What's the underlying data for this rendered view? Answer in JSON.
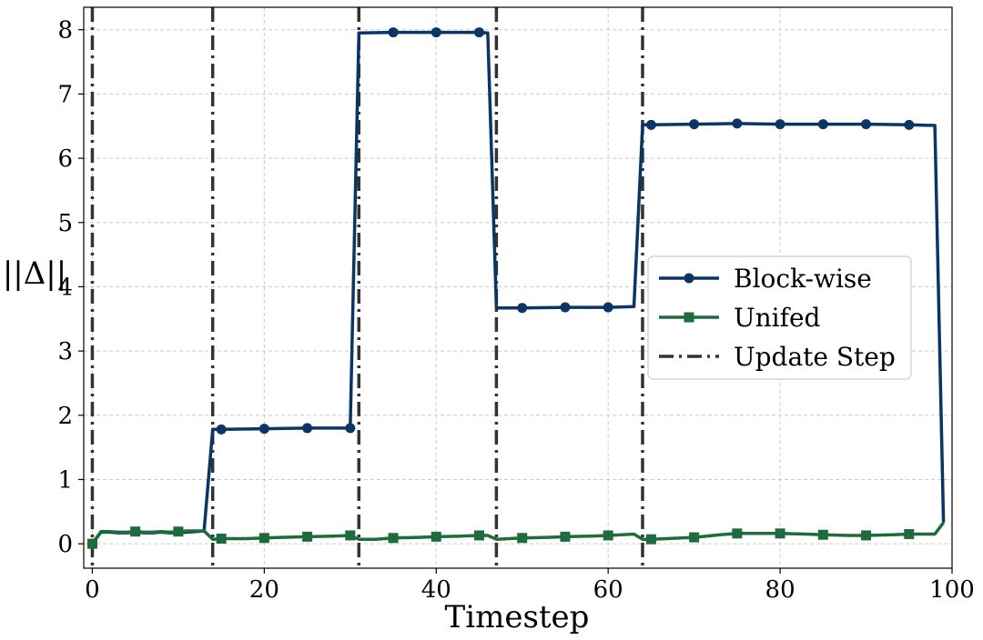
{
  "chart_data": {
    "type": "line",
    "xlabel": "Timestep",
    "ylabel": "||Δ||",
    "xlim": [
      -1,
      100
    ],
    "ylim": [
      -0.38,
      8.35
    ],
    "xticks": [
      0,
      20,
      40,
      60,
      80,
      100
    ],
    "yticks": [
      0,
      1,
      2,
      3,
      4,
      5,
      6,
      7,
      8
    ],
    "grid": true,
    "legend_position": "center-right",
    "update_steps": [
      0,
      14,
      31,
      47,
      64
    ],
    "series": [
      {
        "name": "Block-wise",
        "color": "#0b3565",
        "marker": "circle",
        "points": [
          [
            0,
            0
          ],
          [
            1,
            0.18
          ],
          [
            2,
            0.18
          ],
          [
            3,
            0.17
          ],
          [
            4,
            0.17
          ],
          [
            5,
            0.18
          ],
          [
            6,
            0.17
          ],
          [
            7,
            0.17
          ],
          [
            8,
            0.18
          ],
          [
            9,
            0.17
          ],
          [
            10,
            0.17
          ],
          [
            11,
            0.18
          ],
          [
            12,
            0.19
          ],
          [
            13,
            0.2
          ],
          [
            14,
            1.78
          ],
          [
            15,
            1.78
          ],
          [
            20,
            1.79
          ],
          [
            25,
            1.8
          ],
          [
            30,
            1.8
          ],
          [
            31,
            7.95
          ],
          [
            35,
            7.96
          ],
          [
            40,
            7.96
          ],
          [
            45,
            7.96
          ],
          [
            46,
            7.95
          ],
          [
            47,
            3.67
          ],
          [
            50,
            3.67
          ],
          [
            55,
            3.68
          ],
          [
            60,
            3.68
          ],
          [
            63,
            3.69
          ],
          [
            64,
            6.52
          ],
          [
            65,
            6.52
          ],
          [
            70,
            6.53
          ],
          [
            75,
            6.54
          ],
          [
            80,
            6.53
          ],
          [
            85,
            6.53
          ],
          [
            90,
            6.53
          ],
          [
            95,
            6.52
          ],
          [
            98,
            6.51
          ],
          [
            99,
            0.33
          ]
        ],
        "marker_x": [
          0,
          15,
          20,
          25,
          30,
          35,
          40,
          45,
          50,
          55,
          60,
          65,
          70,
          75,
          80,
          85,
          90,
          95
        ]
      },
      {
        "name": "Unifed",
        "color": "#1e6b3e",
        "marker": "square",
        "points": [
          [
            0,
            0
          ],
          [
            1,
            0.19
          ],
          [
            2,
            0.19
          ],
          [
            3,
            0.18
          ],
          [
            4,
            0.18
          ],
          [
            5,
            0.19
          ],
          [
            6,
            0.18
          ],
          [
            7,
            0.18
          ],
          [
            8,
            0.19
          ],
          [
            9,
            0.18
          ],
          [
            10,
            0.19
          ],
          [
            11,
            0.2
          ],
          [
            12,
            0.2
          ],
          [
            13,
            0.2
          ],
          [
            14,
            0.07
          ],
          [
            15,
            0.08
          ],
          [
            16,
            0.08
          ],
          [
            18,
            0.08
          ],
          [
            20,
            0.09
          ],
          [
            22,
            0.1
          ],
          [
            25,
            0.11
          ],
          [
            28,
            0.12
          ],
          [
            30,
            0.13
          ],
          [
            31,
            0.07
          ],
          [
            33,
            0.07
          ],
          [
            35,
            0.09
          ],
          [
            38,
            0.1
          ],
          [
            40,
            0.11
          ],
          [
            43,
            0.12
          ],
          [
            45,
            0.13
          ],
          [
            46,
            0.13
          ],
          [
            47,
            0.07
          ],
          [
            50,
            0.09
          ],
          [
            53,
            0.1
          ],
          [
            55,
            0.11
          ],
          [
            58,
            0.12
          ],
          [
            60,
            0.13
          ],
          [
            63,
            0.15
          ],
          [
            64,
            0.07
          ],
          [
            65,
            0.07
          ],
          [
            70,
            0.1
          ],
          [
            73,
            0.14
          ],
          [
            75,
            0.16
          ],
          [
            78,
            0.16
          ],
          [
            80,
            0.16
          ],
          [
            83,
            0.15
          ],
          [
            85,
            0.14
          ],
          [
            88,
            0.13
          ],
          [
            90,
            0.13
          ],
          [
            93,
            0.14
          ],
          [
            95,
            0.15
          ],
          [
            98,
            0.15
          ],
          [
            99,
            0.33
          ]
        ],
        "marker_x": [
          0,
          5,
          10,
          15,
          20,
          25,
          30,
          35,
          40,
          45,
          50,
          55,
          60,
          65,
          70,
          75,
          80,
          85,
          90,
          95
        ]
      },
      {
        "name": "Update Step",
        "color": "#333333",
        "style": "dash-dot"
      }
    ]
  }
}
